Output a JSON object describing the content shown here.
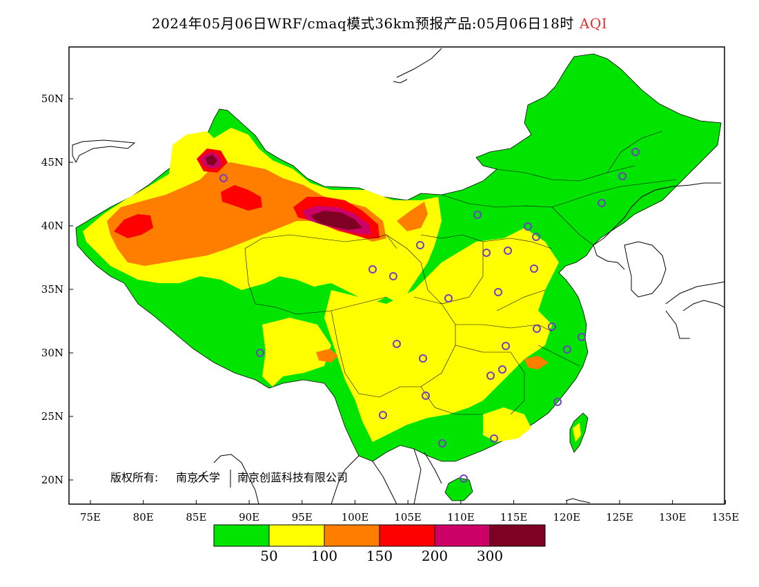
{
  "title": {
    "text": "2024年05月06日WRF/cmaq模式36km预报产品:05月06日18时",
    "variable": "AQI"
  },
  "axes": {
    "lon_ticks": [
      "75E",
      "80E",
      "85E",
      "90E",
      "95E",
      "100E",
      "105E",
      "110E",
      "115E",
      "120E",
      "125E",
      "130E",
      "135E"
    ],
    "lat_ticks": [
      "50N",
      "45N",
      "40N",
      "35N",
      "30N",
      "25N",
      "20N"
    ]
  },
  "copyright": {
    "label": "版权所有:",
    "org1": "南京大学",
    "org2": "南京创蓝科技有限公司"
  },
  "legend": {
    "colors": [
      "#00e400",
      "#ffff00",
      "#ff7e00",
      "#ff0000",
      "#cc0066",
      "#7e0023"
    ],
    "labels": [
      "50",
      "100",
      "150",
      "200",
      "300"
    ]
  },
  "colors": {
    "good": "#00e400",
    "moderate": "#ffff00",
    "usg": "#ff7e00",
    "unhealthy": "#ff0000",
    "very_unhealthy": "#cc0066",
    "hazardous": "#7e0023",
    "station": "#7040c0"
  }
}
